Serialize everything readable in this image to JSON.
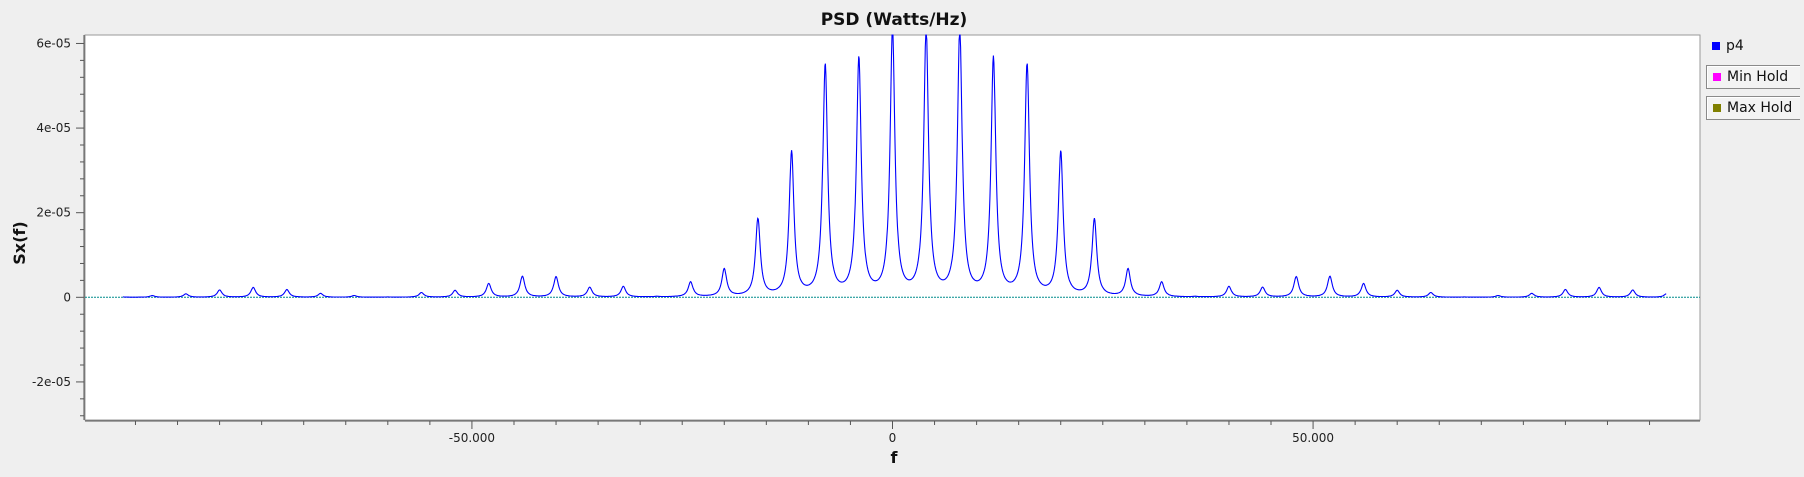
{
  "chart_data": {
    "type": "line",
    "title": "PSD (Watts/Hz)",
    "xlabel": "f",
    "ylabel": "Sx(f)",
    "xlim": [
      -96000,
      96000
    ],
    "ylim": [
      -2.9e-05,
      6.2e-05
    ],
    "x_ticks": [
      {
        "value": -50000,
        "label": "-50.000"
      },
      {
        "value": 0,
        "label": "0"
      },
      {
        "value": 50000,
        "label": "50.000"
      }
    ],
    "y_ticks": [
      {
        "value": -2e-05,
        "label": "-2e-05"
      },
      {
        "value": 0,
        "label": "0"
      },
      {
        "value": 2e-05,
        "label": "2e-05"
      },
      {
        "value": 4e-05,
        "label": "4e-05"
      },
      {
        "value": 6e-05,
        "label": "6e-05"
      }
    ],
    "grid": false,
    "legend_position": "right",
    "series": [
      {
        "name": "p4",
        "color": "#0000ff",
        "peaks": [
          {
            "f": -92000,
            "p": 2.5e-07
          },
          {
            "f": -88000,
            "p": 4e-07
          },
          {
            "f": -84000,
            "p": 8e-07
          },
          {
            "f": -80000,
            "p": 1.7e-06
          },
          {
            "f": -76000,
            "p": 2.3e-06
          },
          {
            "f": -72000,
            "p": 1.8e-06
          },
          {
            "f": -68000,
            "p": 9e-07
          },
          {
            "f": -64000,
            "p": 4e-07
          },
          {
            "f": -60000,
            "p": 5e-08
          },
          {
            "f": -56000,
            "p": 1.1e-06
          },
          {
            "f": -52000,
            "p": 1.6e-06
          },
          {
            "f": -48000,
            "p": 3.2e-06
          },
          {
            "f": -44000,
            "p": 4.9e-06
          },
          {
            "f": -40000,
            "p": 4.8e-06
          },
          {
            "f": -36000,
            "p": 2.3e-06
          },
          {
            "f": -32000,
            "p": 2.5e-06
          },
          {
            "f": -28000,
            "p": 1e-07
          },
          {
            "f": -24000,
            "p": 3.5e-06
          },
          {
            "f": -20000,
            "p": 6.5e-06
          },
          {
            "f": -16000,
            "p": 1.82e-05
          },
          {
            "f": -12000,
            "p": 3.4e-05
          },
          {
            "f": -8000,
            "p": 5.45e-05
          },
          {
            "f": -4000,
            "p": 5.6e-05
          },
          {
            "f": 0,
            "p": 6.3e-05
          },
          {
            "f": 4000,
            "p": 6.3e-05
          },
          {
            "f": 8000,
            "p": 6.3e-05
          },
          {
            "f": 12000,
            "p": 5.6e-05
          },
          {
            "f": 16000,
            "p": 5.45e-05
          },
          {
            "f": 20000,
            "p": 3.4e-05
          },
          {
            "f": 24000,
            "p": 1.82e-05
          },
          {
            "f": 28000,
            "p": 6.5e-06
          },
          {
            "f": 32000,
            "p": 3.5e-06
          },
          {
            "f": 36000,
            "p": 1e-07
          },
          {
            "f": 40000,
            "p": 2.5e-06
          },
          {
            "f": 44000,
            "p": 2.3e-06
          },
          {
            "f": 48000,
            "p": 4.8e-06
          },
          {
            "f": 52000,
            "p": 4.9e-06
          },
          {
            "f": 56000,
            "p": 3.2e-06
          },
          {
            "f": 60000,
            "p": 1.6e-06
          },
          {
            "f": 64000,
            "p": 1.1e-06
          },
          {
            "f": 68000,
            "p": 5e-08
          },
          {
            "f": 72000,
            "p": 4e-07
          },
          {
            "f": 76000,
            "p": 9e-07
          },
          {
            "f": 80000,
            "p": 1.8e-06
          },
          {
            "f": 84000,
            "p": 2.3e-06
          },
          {
            "f": 88000,
            "p": 1.7e-06
          },
          {
            "f": 92000,
            "p": 8e-07
          }
        ]
      },
      {
        "name": "Min Hold",
        "color": "#ff00ff"
      },
      {
        "name": "Max Hold",
        "color": "#7f7f00"
      }
    ]
  },
  "legend": {
    "items": [
      {
        "label": "p4",
        "color": "#0000ff"
      },
      {
        "label": "Min Hold",
        "color": "#ff00ff"
      },
      {
        "label": "Max Hold",
        "color": "#7f7f00"
      }
    ]
  },
  "colors": {
    "canvas_background": "#ffffff",
    "zero_line": "#008b8b"
  }
}
